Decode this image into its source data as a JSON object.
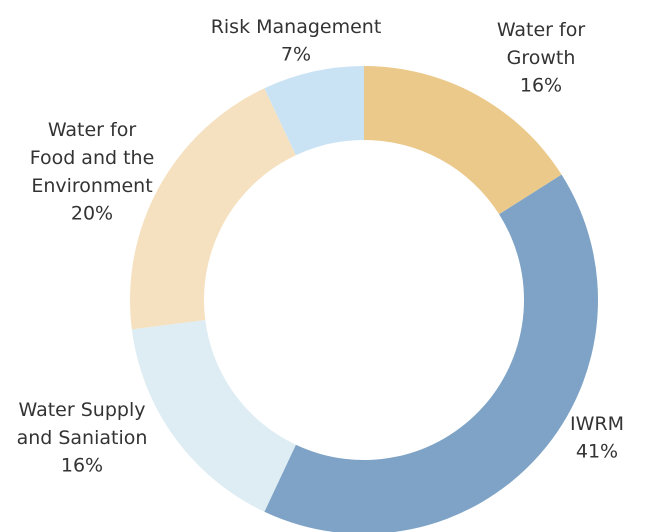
{
  "chart_data": {
    "type": "donut",
    "categories": [
      "Water for Growth",
      "IWRM",
      "Water Supply and Saniation",
      "Water for Food and the Environment",
      "Risk Management"
    ],
    "values": [
      16,
      41,
      16,
      20,
      7
    ],
    "value_labels": [
      "16%",
      "41%",
      "16%",
      "20%",
      "7%"
    ],
    "colors": [
      "#ebc98a",
      "#7ea3c6",
      "#deedf3",
      "#f5e1c0",
      "#c9e3f5"
    ]
  }
}
